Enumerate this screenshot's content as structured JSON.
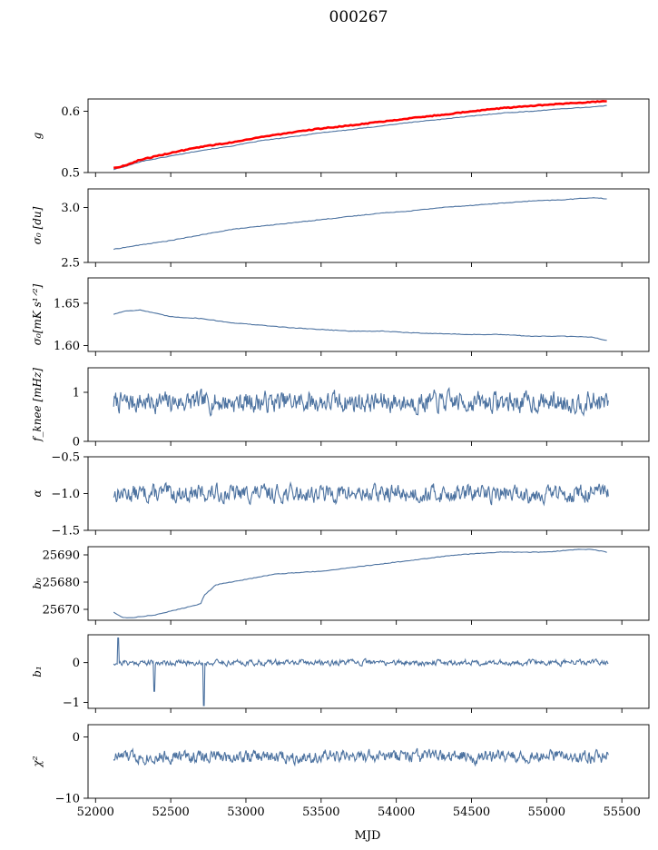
{
  "figure": {
    "title": "000267",
    "xlabel": "MJD"
  },
  "colors": {
    "series_main": "#4c72a0",
    "series_reference": "#ff0000",
    "axes": "#000000",
    "background": "#ffffff"
  },
  "chart_data": {
    "type": "line",
    "shared_x": true,
    "xlim": [
      51950,
      55680
    ],
    "xticks": [
      52000,
      52500,
      53000,
      53500,
      54000,
      54500,
      55000,
      55500
    ],
    "x_range_data": [
      52120,
      55410
    ],
    "grid": false,
    "panels": [
      {
        "id": "g",
        "ylabel": "g",
        "ylim": [
          0.5,
          0.62
        ],
        "yticks": [
          0.5,
          0.6
        ],
        "series": [
          {
            "color": "#4c72a0",
            "x": [
              52120,
              52150,
              52200,
              52300,
              52500,
              52700,
              52900,
              53100,
              53300,
              53500,
              53700,
              53900,
              54100,
              54300,
              54500,
              54700,
              54900,
              55100,
              55300,
              55400
            ],
            "y": [
              0.505,
              0.507,
              0.51,
              0.518,
              0.527,
              0.536,
              0.543,
              0.552,
              0.558,
              0.565,
              0.57,
              0.576,
              0.582,
              0.587,
              0.592,
              0.597,
              0.6,
              0.604,
              0.607,
              0.609
            ]
          },
          {
            "color": "#ff0000",
            "x": [
              52120,
              52150,
              52200,
              52300,
              52500,
              52700,
              52900,
              53100,
              53300,
              53500,
              53700,
              53900,
              54100,
              54300,
              54500,
              54700,
              54900,
              55100,
              55300,
              55400
            ],
            "y": [
              0.508,
              0.508,
              0.512,
              0.521,
              0.532,
              0.542,
              0.549,
              0.558,
              0.565,
              0.572,
              0.577,
              0.583,
              0.589,
              0.594,
              0.6,
              0.605,
              0.609,
              0.612,
              0.615,
              0.617
            ]
          }
        ]
      },
      {
        "id": "sigma0-du",
        "ylabel": "σ₀ [du]",
        "ylim": [
          2.5,
          3.17
        ],
        "yticks": [
          2.5,
          3.0
        ],
        "series": [
          {
            "color": "#4c72a0",
            "x": [
              52120,
              52300,
              52500,
              52700,
              52900,
              53100,
              53300,
              53500,
              53700,
              53900,
              54100,
              54300,
              54500,
              54700,
              54900,
              55100,
              55200,
              55300,
              55400
            ],
            "y": [
              2.62,
              2.66,
              2.7,
              2.75,
              2.8,
              2.83,
              2.86,
              2.89,
              2.92,
              2.95,
              2.97,
              3.0,
              3.02,
              3.04,
              3.06,
              3.07,
              3.08,
              3.09,
              3.08
            ]
          }
        ]
      },
      {
        "id": "sigma0-mk",
        "ylabel": "σ₀[mK s¹ᐟ²]",
        "ylim": [
          1.593,
          1.68
        ],
        "yticks": [
          1.6,
          1.65
        ],
        "series": [
          {
            "color": "#4c72a0",
            "x": [
              52120,
              52200,
              52300,
              52500,
              52700,
              52900,
              53100,
              53300,
              53500,
              53700,
              53900,
              54100,
              54300,
              54500,
              54700,
              54900,
              55100,
              55300,
              55400
            ],
            "y": [
              1.637,
              1.641,
              1.642,
              1.634,
              1.632,
              1.627,
              1.624,
              1.621,
              1.619,
              1.617,
              1.617,
              1.615,
              1.614,
              1.613,
              1.613,
              1.611,
              1.611,
              1.61,
              1.606
            ]
          }
        ]
      },
      {
        "id": "fknee",
        "ylabel": "f_knee [mHz]",
        "ylim": [
          0,
          1.5
        ],
        "yticks": [
          0,
          1
        ],
        "noise": {
          "mean": 0.8,
          "amplitude": 0.18,
          "seed": 7
        },
        "series": [
          {
            "color": "#4c72a0",
            "x_start": 52120,
            "x_end": 55410,
            "points": 700
          }
        ]
      },
      {
        "id": "alpha",
        "ylabel": "α",
        "ylim": [
          -1.5,
          -0.5
        ],
        "yticks": [
          -1.5,
          -1.0,
          -0.5
        ],
        "noise": {
          "mean": -1.0,
          "amplitude": 0.1,
          "seed": 13
        },
        "series": [
          {
            "color": "#4c72a0",
            "x_start": 52120,
            "x_end": 55410,
            "points": 700
          }
        ]
      },
      {
        "id": "b0",
        "ylabel": "b₀",
        "ylim": [
          25666,
          25693
        ],
        "yticks": [
          25670,
          25680,
          25690
        ],
        "series": [
          {
            "color": "#4c72a0",
            "x": [
              52120,
              52180,
              52250,
              52400,
              52550,
              52700,
              52720,
              52760,
              52800,
              53000,
              53200,
              53500,
              53800,
              54100,
              54400,
              54700,
              55000,
              55200,
              55300,
              55400
            ],
            "y": [
              25669,
              25667,
              25667,
              25668,
              25670,
              25672,
              25675,
              25677,
              25679,
              25681,
              25683,
              25684,
              25686,
              25688,
              25690,
              25691,
              25691,
              25692,
              25692,
              25691
            ]
          }
        ]
      },
      {
        "id": "b1",
        "ylabel": "b₁",
        "ylim": [
          -1.15,
          0.7
        ],
        "yticks": [
          -1,
          0
        ],
        "noise": {
          "mean": 0.0,
          "amplitude": 0.06,
          "seed": 21
        },
        "series": [
          {
            "color": "#4c72a0",
            "x_start": 52120,
            "x_end": 55410,
            "points": 700
          }
        ]
      },
      {
        "id": "chi2",
        "ylabel": "χ²",
        "ylim": [
          -10,
          2
        ],
        "yticks": [
          -10,
          0
        ],
        "noise": {
          "mean": -3.2,
          "amplitude": 0.9,
          "seed": 33
        },
        "series": [
          {
            "color": "#4c72a0",
            "x_start": 52120,
            "x_end": 55410,
            "points": 700
          }
        ]
      }
    ]
  }
}
